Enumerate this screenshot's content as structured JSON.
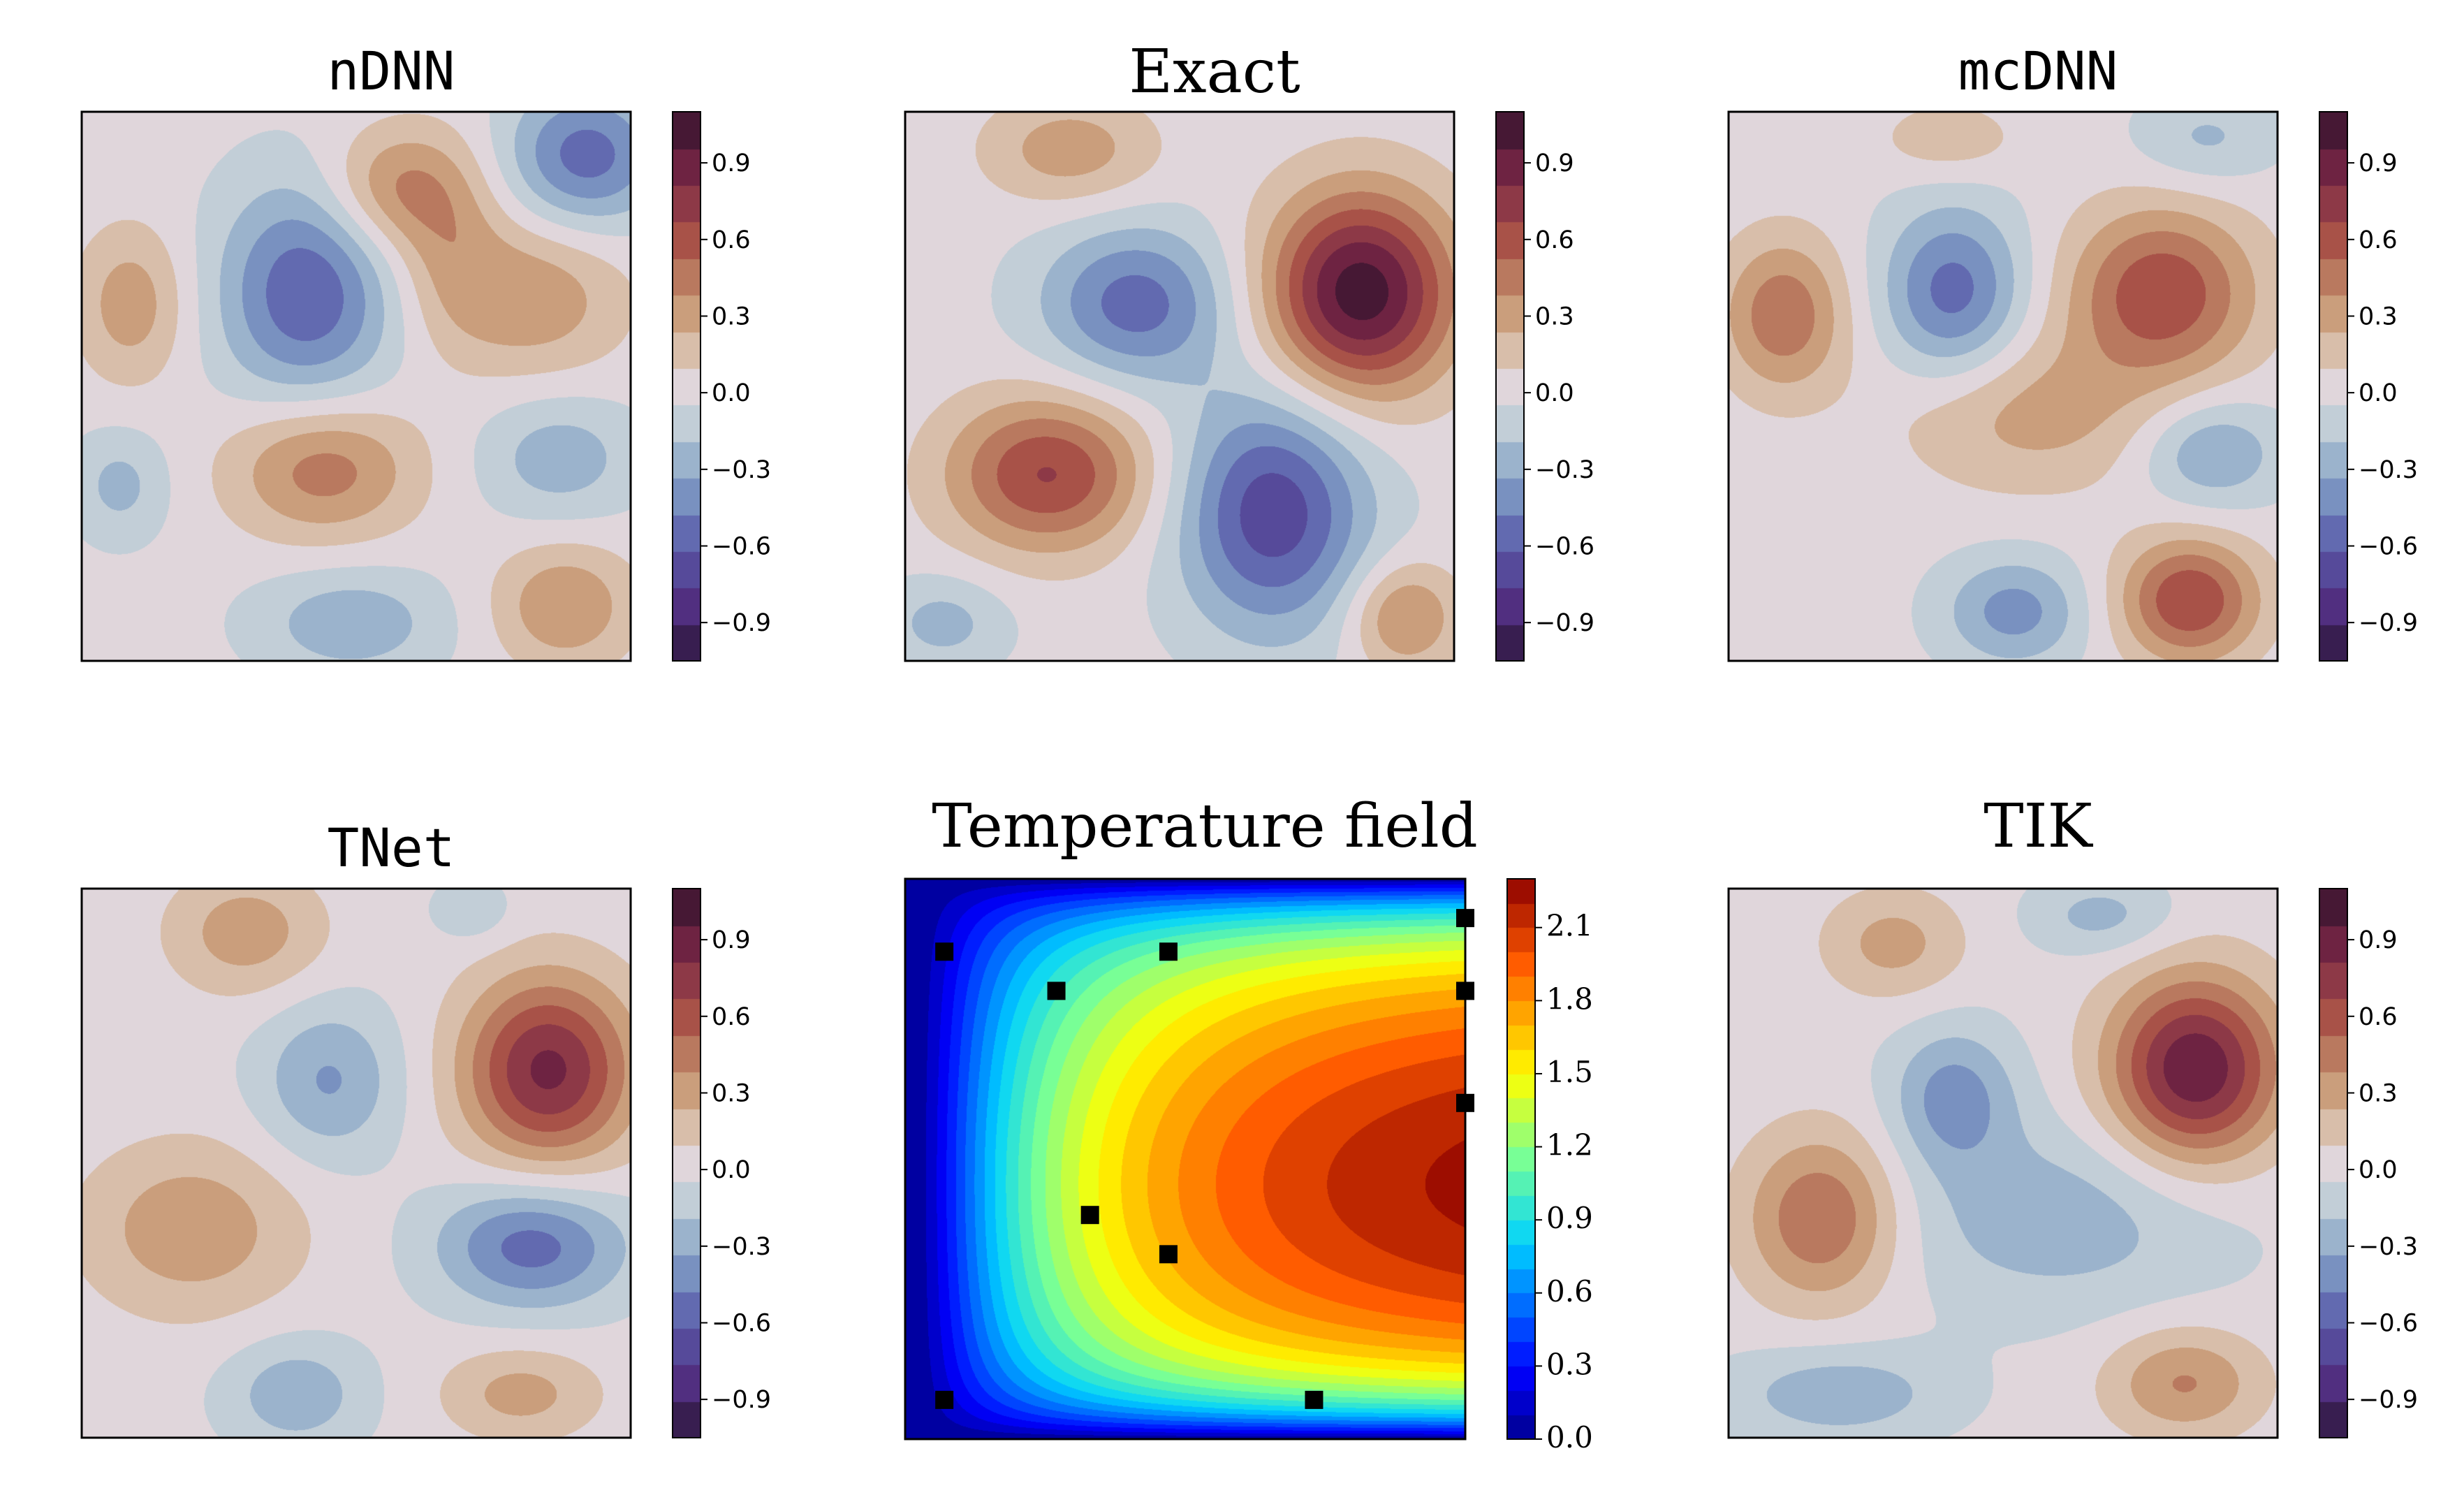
{
  "chart_data": [
    {
      "type": "heatmap",
      "title": "nDNN",
      "colormap": "twilight_shifted",
      "colorbar": {
        "ticks": [
          "0.9",
          "0.6",
          "0.3",
          "0.0",
          "−0.3",
          "−0.6",
          "−0.9"
        ],
        "range": [
          -1.05,
          1.1
        ]
      },
      "blobs": [
        {
          "x": 0.41,
          "y": 0.67,
          "amp": -0.6,
          "sx": 0.11,
          "sy": 0.14
        },
        {
          "x": 0.92,
          "y": 0.92,
          "amp": -0.55,
          "sx": 0.1,
          "sy": 0.09
        },
        {
          "x": 0.57,
          "y": 0.86,
          "amp": 0.4,
          "sx": 0.09,
          "sy": 0.08
        },
        {
          "x": 0.82,
          "y": 0.66,
          "amp": 0.35,
          "sx": 0.12,
          "sy": 0.1
        },
        {
          "x": 0.67,
          "y": 0.76,
          "amp": 0.22,
          "sx": 0.07,
          "sy": 0.12
        },
        {
          "x": 0.09,
          "y": 0.65,
          "amp": 0.33,
          "sx": 0.07,
          "sy": 0.1
        },
        {
          "x": 0.44,
          "y": 0.35,
          "amp": 0.47,
          "sx": 0.12,
          "sy": 0.09
        },
        {
          "x": 0.07,
          "y": 0.32,
          "amp": -0.24,
          "sx": 0.06,
          "sy": 0.07
        },
        {
          "x": 0.87,
          "y": 0.37,
          "amp": -0.28,
          "sx": 0.1,
          "sy": 0.08
        },
        {
          "x": 0.49,
          "y": 0.07,
          "amp": -0.3,
          "sx": 0.12,
          "sy": 0.07
        },
        {
          "x": 0.88,
          "y": 0.1,
          "amp": 0.38,
          "sx": 0.09,
          "sy": 0.08
        }
      ]
    },
    {
      "type": "heatmap",
      "title": "Exact",
      "colormap": "twilight_shifted",
      "colorbar": {
        "ticks": [
          "0.9",
          "0.6",
          "0.3",
          "0.0",
          "−0.3",
          "−0.6",
          "−0.9"
        ],
        "range": [
          -1.05,
          1.1
        ]
      },
      "blobs": [
        {
          "x": 0.83,
          "y": 0.67,
          "amp": 1.05,
          "sx": 0.12,
          "sy": 0.13
        },
        {
          "x": 0.42,
          "y": 0.65,
          "amp": -0.55,
          "sx": 0.12,
          "sy": 0.1
        },
        {
          "x": 0.26,
          "y": 0.34,
          "amp": 0.68,
          "sx": 0.13,
          "sy": 0.1
        },
        {
          "x": 0.67,
          "y": 0.27,
          "amp": -0.72,
          "sx": 0.12,
          "sy": 0.15
        },
        {
          "x": 0.3,
          "y": 0.93,
          "amp": 0.33,
          "sx": 0.11,
          "sy": 0.07
        },
        {
          "x": 0.91,
          "y": 0.08,
          "amp": 0.42,
          "sx": 0.07,
          "sy": 0.07
        },
        {
          "x": 0.07,
          "y": 0.07,
          "amp": -0.25,
          "sx": 0.08,
          "sy": 0.06
        }
      ]
    },
    {
      "type": "heatmap",
      "title": "mcDNN",
      "colormap": "twilight_shifted",
      "colorbar": {
        "ticks": [
          "0.9",
          "0.6",
          "0.3",
          "0.0",
          "−0.3",
          "−0.6",
          "−0.9"
        ],
        "range": [
          -1.05,
          1.1
        ]
      },
      "blobs": [
        {
          "x": 0.41,
          "y": 0.67,
          "amp": -0.55,
          "sx": 0.09,
          "sy": 0.11
        },
        {
          "x": 0.79,
          "y": 0.67,
          "amp": 0.65,
          "sx": 0.12,
          "sy": 0.11
        },
        {
          "x": 0.55,
          "y": 0.45,
          "amp": 0.3,
          "sx": 0.17,
          "sy": 0.1
        },
        {
          "x": 0.1,
          "y": 0.63,
          "amp": 0.5,
          "sx": 0.08,
          "sy": 0.1
        },
        {
          "x": 0.84,
          "y": 0.11,
          "amp": 0.67,
          "sx": 0.09,
          "sy": 0.08
        },
        {
          "x": 0.52,
          "y": 0.09,
          "amp": -0.4,
          "sx": 0.09,
          "sy": 0.07
        },
        {
          "x": 0.88,
          "y": 0.38,
          "amp": -0.35,
          "sx": 0.09,
          "sy": 0.07
        },
        {
          "x": 0.87,
          "y": 0.95,
          "amp": -0.22,
          "sx": 0.09,
          "sy": 0.06
        },
        {
          "x": 0.4,
          "y": 0.95,
          "amp": 0.2,
          "sx": 0.09,
          "sy": 0.05
        }
      ]
    },
    {
      "type": "heatmap",
      "title": "TNet",
      "colormap": "twilight_shifted",
      "colorbar": {
        "ticks": [
          "0.9",
          "0.6",
          "0.3",
          "0.0",
          "−0.3",
          "−0.6",
          "−0.9"
        ],
        "range": [
          -1.05,
          1.1
        ]
      },
      "blobs": [
        {
          "x": 0.85,
          "y": 0.67,
          "amp": 0.85,
          "sx": 0.11,
          "sy": 0.12
        },
        {
          "x": 0.45,
          "y": 0.65,
          "amp": -0.35,
          "sx": 0.09,
          "sy": 0.1
        },
        {
          "x": 0.82,
          "y": 0.35,
          "amp": -0.55,
          "sx": 0.12,
          "sy": 0.08
        },
        {
          "x": 0.2,
          "y": 0.38,
          "amp": 0.35,
          "sx": 0.14,
          "sy": 0.11
        },
        {
          "x": 0.3,
          "y": 0.92,
          "amp": 0.33,
          "sx": 0.1,
          "sy": 0.08
        },
        {
          "x": 0.39,
          "y": 0.08,
          "amp": -0.3,
          "sx": 0.09,
          "sy": 0.07
        },
        {
          "x": 0.8,
          "y": 0.08,
          "amp": 0.3,
          "sx": 0.1,
          "sy": 0.06
        },
        {
          "x": 0.71,
          "y": 0.96,
          "amp": -0.18,
          "sx": 0.05,
          "sy": 0.04
        }
      ]
    },
    {
      "type": "heatmap",
      "title": "Temperature field",
      "colormap": "jet",
      "colorbar": {
        "ticks": [
          "0.0",
          "0.3",
          "0.6",
          "0.9",
          "1.2",
          "1.5",
          "1.8",
          "2.1"
        ],
        "range": [
          0.0,
          2.3
        ]
      },
      "sensors": [
        {
          "x": 0.07,
          "y": 0.87
        },
        {
          "x": 0.27,
          "y": 0.8
        },
        {
          "x": 0.47,
          "y": 0.87
        },
        {
          "x": 1.0,
          "y": 0.93
        },
        {
          "x": 1.0,
          "y": 0.8
        },
        {
          "x": 1.0,
          "y": 0.6
        },
        {
          "x": 0.33,
          "y": 0.4
        },
        {
          "x": 0.47,
          "y": 0.33
        },
        {
          "x": 0.07,
          "y": 0.07
        },
        {
          "x": 0.73,
          "y": 0.07
        }
      ]
    },
    {
      "type": "heatmap",
      "title": "TIK",
      "colormap": "twilight_shifted",
      "colorbar": {
        "ticks": [
          "0.9",
          "0.6",
          "0.3",
          "0.0",
          "−0.3",
          "−0.6",
          "−0.9"
        ],
        "range": [
          -1.05,
          1.1
        ]
      },
      "blobs": [
        {
          "x": 0.85,
          "y": 0.67,
          "amp": 0.95,
          "sx": 0.11,
          "sy": 0.12
        },
        {
          "x": 0.17,
          "y": 0.4,
          "amp": 0.55,
          "sx": 0.1,
          "sy": 0.11
        },
        {
          "x": 0.41,
          "y": 0.62,
          "amp": -0.4,
          "sx": 0.08,
          "sy": 0.09
        },
        {
          "x": 0.6,
          "y": 0.4,
          "amp": -0.28,
          "sx": 0.22,
          "sy": 0.12
        },
        {
          "x": 0.3,
          "y": 0.9,
          "amp": 0.3,
          "sx": 0.09,
          "sy": 0.07
        },
        {
          "x": 0.83,
          "y": 0.1,
          "amp": 0.4,
          "sx": 0.1,
          "sy": 0.07
        },
        {
          "x": 0.2,
          "y": 0.08,
          "amp": -0.3,
          "sx": 0.14,
          "sy": 0.06
        },
        {
          "x": 0.68,
          "y": 0.95,
          "amp": -0.25,
          "sx": 0.09,
          "sy": 0.05
        }
      ]
    }
  ]
}
